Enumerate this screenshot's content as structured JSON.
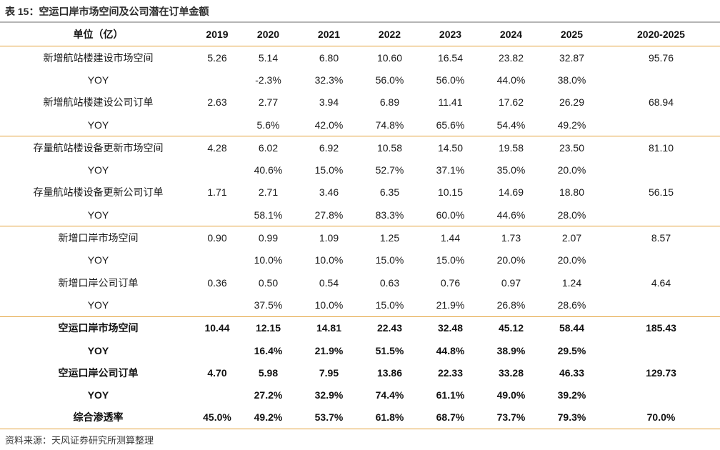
{
  "caption": "表 15：空运口岸市场空间及公司潜在订单金额",
  "source": "资料来源：天风证券研究所测算整理",
  "header": [
    "单位（亿）",
    "2019",
    "2020",
    "2021",
    "2022",
    "2023",
    "2024",
    "2025",
    "2020-2025"
  ],
  "groups": [
    [
      [
        "新增航站楼建设市场空间",
        "5.26",
        "5.14",
        "6.80",
        "10.60",
        "16.54",
        "23.82",
        "32.87",
        "95.76"
      ],
      [
        "YOY",
        "",
        "-2.3%",
        "32.3%",
        "56.0%",
        "56.0%",
        "44.0%",
        "38.0%",
        ""
      ],
      [
        "新增航站楼建设公司订单",
        "2.63",
        "2.77",
        "3.94",
        "6.89",
        "11.41",
        "17.62",
        "26.29",
        "68.94"
      ],
      [
        "YOY",
        "",
        "5.6%",
        "42.0%",
        "74.8%",
        "65.6%",
        "54.4%",
        "49.2%",
        ""
      ]
    ],
    [
      [
        "存量航站楼设备更新市场空间",
        "4.28",
        "6.02",
        "6.92",
        "10.58",
        "14.50",
        "19.58",
        "23.50",
        "81.10"
      ],
      [
        "YOY",
        "",
        "40.6%",
        "15.0%",
        "52.7%",
        "37.1%",
        "35.0%",
        "20.0%",
        ""
      ],
      [
        "存量航站楼设备更新公司订单",
        "1.71",
        "2.71",
        "3.46",
        "6.35",
        "10.15",
        "14.69",
        "18.80",
        "56.15"
      ],
      [
        "YOY",
        "",
        "58.1%",
        "27.8%",
        "83.3%",
        "60.0%",
        "44.6%",
        "28.0%",
        ""
      ]
    ],
    [
      [
        "新增口岸市场空间",
        "0.90",
        "0.99",
        "1.09",
        "1.25",
        "1.44",
        "1.73",
        "2.07",
        "8.57"
      ],
      [
        "YOY",
        "",
        "10.0%",
        "10.0%",
        "15.0%",
        "15.0%",
        "20.0%",
        "20.0%",
        ""
      ],
      [
        "新增口岸公司订单",
        "0.36",
        "0.50",
        "0.54",
        "0.63",
        "0.76",
        "0.97",
        "1.24",
        "4.64"
      ],
      [
        "YOY",
        "",
        "37.5%",
        "10.0%",
        "15.0%",
        "21.9%",
        "26.8%",
        "28.6%",
        ""
      ]
    ]
  ],
  "totals": [
    [
      "空运口岸市场空间",
      "10.44",
      "12.15",
      "14.81",
      "22.43",
      "32.48",
      "45.12",
      "58.44",
      "185.43"
    ],
    [
      "YOY",
      "",
      "16.4%",
      "21.9%",
      "51.5%",
      "44.8%",
      "38.9%",
      "29.5%",
      ""
    ],
    [
      "空运口岸公司订单",
      "4.70",
      "5.98",
      "7.95",
      "13.86",
      "22.33",
      "33.28",
      "46.33",
      "129.73"
    ],
    [
      "YOY",
      "",
      "27.2%",
      "32.9%",
      "74.4%",
      "61.1%",
      "49.0%",
      "39.2%",
      ""
    ],
    [
      "综合渗透率",
      "45.0%",
      "49.2%",
      "53.7%",
      "61.8%",
      "68.7%",
      "73.7%",
      "79.3%",
      "70.0%"
    ]
  ]
}
